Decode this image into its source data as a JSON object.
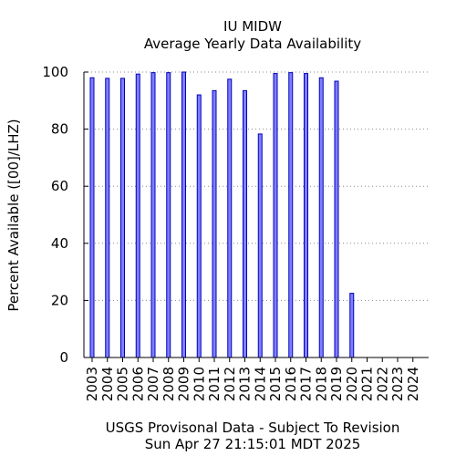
{
  "chart_data": {
    "type": "bar",
    "title": "IU MIDW",
    "subtitle": "Average Yearly Data Availability",
    "ylabel": "Percent Available ([00]/LHZ)",
    "footer_line1": "USGS Provisonal Data - Subject To Revision",
    "footer_line2": "Sun Apr 27 21:15:01 MDT 2025",
    "categories": [
      "2003",
      "2004",
      "2005",
      "2006",
      "2007",
      "2008",
      "2009",
      "2010",
      "2011",
      "2012",
      "2013",
      "2014",
      "2015",
      "2016",
      "2017",
      "2018",
      "2019",
      "2020",
      "2021",
      "2022",
      "2023",
      "2024"
    ],
    "values": [
      98,
      97.8,
      97.8,
      99.3,
      99.8,
      99.8,
      100,
      92,
      93.5,
      97.5,
      93.5,
      78.3,
      99.5,
      99.8,
      99.5,
      98,
      96.8,
      22.5,
      0,
      0,
      0,
      0
    ],
    "ylim": [
      0,
      100
    ],
    "yticks": [
      0,
      20,
      40,
      60,
      80,
      100
    ],
    "grid": "horizontal dotted",
    "colors": {
      "bar_fill": "#7f7fff",
      "bar_edge": "#0000bb",
      "grid": "#888888",
      "axis": "#000000"
    }
  }
}
